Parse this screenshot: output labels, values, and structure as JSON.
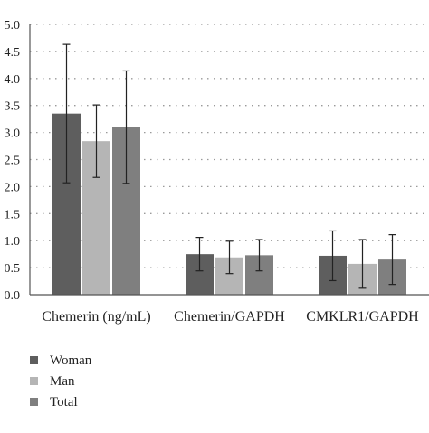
{
  "chart_data": {
    "type": "bar",
    "title": "",
    "xlabel": "",
    "ylabel": "",
    "ylim": [
      0,
      5
    ],
    "yticks": [
      "0.0",
      "0.5",
      "1.0",
      "1.5",
      "2.0",
      "2.5",
      "3.0",
      "3.5",
      "4.0",
      "4.5",
      "5.0"
    ],
    "grid": "horizontal dotted",
    "legend_placement": "bottom-left",
    "categories": [
      "Chemerin (ng/mL)",
      "Chemerin/GAPDH",
      "CMKLR1/GAPDH"
    ],
    "series": [
      {
        "name": "Woman",
        "color": "#5e5e5e",
        "values": [
          3.35,
          0.75,
          0.72
        ],
        "errors": [
          1.28,
          0.31,
          0.46
        ]
      },
      {
        "name": "Man",
        "color": "#b5b5b5",
        "values": [
          2.84,
          0.69,
          0.57
        ],
        "errors": [
          0.67,
          0.3,
          0.45
        ]
      },
      {
        "name": "Total",
        "color": "#7f7f7f",
        "values": [
          3.1,
          0.73,
          0.65
        ],
        "errors": [
          1.04,
          0.29,
          0.46
        ]
      }
    ]
  }
}
